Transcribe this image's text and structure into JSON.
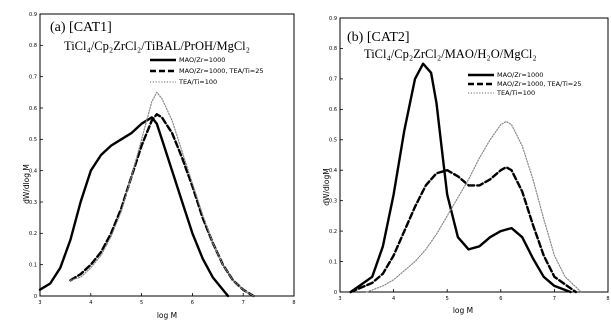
{
  "chart_data": [
    {
      "type": "line",
      "title": "(a) [CAT1]",
      "subtitle": "TiCl₄/Cp₂ZrCl₂/TiBAL/PrOH/MgCl₂",
      "xlabel": "log M",
      "ylabel": "dW/dlog M",
      "xlim": [
        3,
        8
      ],
      "ylim": [
        0,
        0.9
      ],
      "xticks": [
        3,
        4,
        5,
        6,
        7,
        8
      ],
      "yticks": [
        0,
        0.1,
        0.2,
        0.3,
        0.4,
        0.5,
        0.6,
        0.7,
        0.8,
        0.9
      ],
      "legend_position": "upper-right",
      "series": [
        {
          "name": "MAO/Zr=1000",
          "style": "solid-thick",
          "color": "#000000",
          "x": [
            3.0,
            3.2,
            3.4,
            3.6,
            3.8,
            4.0,
            4.2,
            4.4,
            4.6,
            4.8,
            5.0,
            5.2,
            5.3,
            5.4,
            5.6,
            5.8,
            6.0,
            6.2,
            6.4,
            6.6,
            6.7
          ],
          "y": [
            0.02,
            0.04,
            0.09,
            0.18,
            0.3,
            0.4,
            0.45,
            0.48,
            0.5,
            0.52,
            0.55,
            0.57,
            0.55,
            0.5,
            0.4,
            0.3,
            0.2,
            0.12,
            0.06,
            0.02,
            0.0
          ]
        },
        {
          "name": "MAO/Zr=1000, TEA/Ti=25",
          "style": "dashed-thick",
          "color": "#000000",
          "x": [
            3.6,
            3.8,
            4.0,
            4.2,
            4.4,
            4.6,
            4.8,
            5.0,
            5.2,
            5.3,
            5.4,
            5.6,
            5.8,
            6.0,
            6.2,
            6.4,
            6.6,
            6.8,
            7.0,
            7.2
          ],
          "y": [
            0.05,
            0.07,
            0.1,
            0.14,
            0.2,
            0.28,
            0.38,
            0.48,
            0.56,
            0.58,
            0.57,
            0.52,
            0.44,
            0.35,
            0.25,
            0.17,
            0.1,
            0.05,
            0.02,
            0.0
          ]
        },
        {
          "name": "TEA/Ti=100",
          "style": "dotted",
          "color": "#888888",
          "x": [
            3.6,
            3.8,
            4.0,
            4.2,
            4.4,
            4.6,
            4.8,
            5.0,
            5.2,
            5.3,
            5.4,
            5.6,
            5.8,
            6.0,
            6.2,
            6.4,
            6.6,
            6.8,
            7.0,
            7.2
          ],
          "y": [
            0.05,
            0.06,
            0.09,
            0.13,
            0.19,
            0.27,
            0.38,
            0.5,
            0.62,
            0.65,
            0.63,
            0.56,
            0.46,
            0.36,
            0.26,
            0.17,
            0.1,
            0.05,
            0.02,
            0.0
          ]
        }
      ]
    },
    {
      "type": "line",
      "title": "(b) [CAT2]",
      "subtitle": "TiCl₄/Cp₂ZrCl₂/MAO/H₂O/MgCl₂",
      "xlabel": "log M",
      "ylabel": "dW/dlogM",
      "xlim": [
        3,
        8
      ],
      "ylim": [
        0,
        0.9
      ],
      "xticks": [
        3,
        4,
        5,
        6,
        7,
        8
      ],
      "yticks": [
        0,
        0.1,
        0.2,
        0.3,
        0.4,
        0.5,
        0.6,
        0.7,
        0.8,
        0.9
      ],
      "legend_position": "upper-right",
      "series": [
        {
          "name": "MAO/Zr=1000",
          "style": "solid-thick",
          "color": "#000000",
          "x": [
            3.2,
            3.6,
            3.8,
            4.0,
            4.2,
            4.4,
            4.55,
            4.7,
            4.8,
            4.9,
            5.0,
            5.2,
            5.4,
            5.6,
            5.8,
            6.0,
            6.2,
            6.4,
            6.6,
            6.8,
            7.0,
            7.3
          ],
          "y": [
            0.0,
            0.05,
            0.15,
            0.32,
            0.53,
            0.7,
            0.75,
            0.72,
            0.62,
            0.47,
            0.32,
            0.18,
            0.14,
            0.15,
            0.18,
            0.2,
            0.21,
            0.18,
            0.11,
            0.05,
            0.02,
            0.0
          ]
        },
        {
          "name": "MAO/Zr=1000, TEA/Ti=25",
          "style": "dashed-thick",
          "color": "#000000",
          "x": [
            3.2,
            3.6,
            3.8,
            4.0,
            4.2,
            4.4,
            4.6,
            4.8,
            5.0,
            5.2,
            5.4,
            5.6,
            5.8,
            6.0,
            6.1,
            6.2,
            6.4,
            6.6,
            6.8,
            7.0,
            7.4
          ],
          "y": [
            0.0,
            0.03,
            0.06,
            0.12,
            0.2,
            0.28,
            0.35,
            0.39,
            0.4,
            0.38,
            0.35,
            0.35,
            0.37,
            0.4,
            0.41,
            0.4,
            0.33,
            0.22,
            0.12,
            0.05,
            0.0
          ]
        },
        {
          "name": "TEA/Ti=100",
          "style": "dotted",
          "color": "#888888",
          "x": [
            3.5,
            3.8,
            4.0,
            4.2,
            4.4,
            4.6,
            4.8,
            5.0,
            5.2,
            5.4,
            5.6,
            5.8,
            6.0,
            6.1,
            6.2,
            6.4,
            6.6,
            6.8,
            7.0,
            7.2,
            7.5
          ],
          "y": [
            0.0,
            0.02,
            0.04,
            0.07,
            0.1,
            0.14,
            0.19,
            0.25,
            0.31,
            0.37,
            0.44,
            0.5,
            0.55,
            0.56,
            0.55,
            0.48,
            0.37,
            0.24,
            0.12,
            0.05,
            0.0
          ]
        }
      ]
    }
  ]
}
